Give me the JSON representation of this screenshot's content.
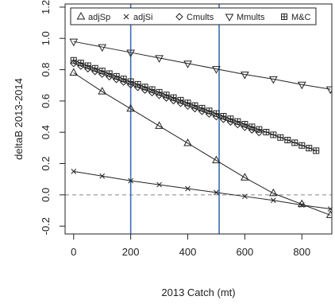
{
  "chart_data": {
    "type": "line",
    "title": "",
    "xlabel": "2013 Catch (mt)",
    "ylabel": "deltaB 2013-2014",
    "xlim": [
      -30,
      905
    ],
    "ylim": [
      -0.25,
      1.22
    ],
    "xticks": [
      0,
      200,
      400,
      600,
      800
    ],
    "yticks": [
      -0.2,
      0.0,
      0.2,
      0.4,
      0.6,
      0.8,
      1.0,
      1.2
    ],
    "ytick_labels": [
      "-0.2",
      "0.0",
      "0.2",
      "0.4",
      "0.6",
      "0.8",
      "1.0",
      "1.2"
    ],
    "grid": false,
    "legend_position": "top",
    "reference_lines": {
      "horizontal_dashed": [
        0.0
      ],
      "vertical": [
        200,
        510
      ],
      "vertical_color": "#3a6fb5"
    },
    "series": [
      {
        "name": "adjSp",
        "marker": "triangle-up",
        "x": [
          0,
          100,
          200,
          300,
          400,
          500,
          600,
          700,
          800,
          900
        ],
        "y": [
          0.78,
          0.66,
          0.55,
          0.44,
          0.33,
          0.22,
          0.11,
          0.01,
          -0.06,
          -0.13
        ]
      },
      {
        "name": "adjSi",
        "marker": "x",
        "x": [
          0,
          100,
          200,
          300,
          400,
          500,
          600,
          700,
          800,
          900
        ],
        "y": [
          0.15,
          0.12,
          0.09,
          0.065,
          0.04,
          0.015,
          -0.01,
          -0.035,
          -0.065,
          -0.09
        ]
      },
      {
        "name": "Cmults",
        "marker": "diamond",
        "x": [
          0,
          25,
          50,
          75,
          100,
          125,
          150,
          175,
          200,
          225,
          250,
          275,
          300,
          325,
          350,
          375,
          400,
          425,
          450,
          475,
          500,
          525,
          550,
          575,
          600,
          625,
          650
        ],
        "y": [
          0.84,
          0.823,
          0.806,
          0.789,
          0.772,
          0.755,
          0.738,
          0.721,
          0.704,
          0.687,
          0.67,
          0.653,
          0.636,
          0.619,
          0.602,
          0.585,
          0.568,
          0.551,
          0.534,
          0.517,
          0.5,
          0.483,
          0.466,
          0.449,
          0.432,
          0.415,
          0.398
        ]
      },
      {
        "name": "Mmults",
        "marker": "triangle-down",
        "x": [
          0,
          100,
          200,
          300,
          400,
          500,
          600,
          700,
          800,
          900
        ],
        "y": [
          0.98,
          0.945,
          0.91,
          0.875,
          0.84,
          0.805,
          0.77,
          0.74,
          0.705,
          0.675
        ]
      },
      {
        "name": "M&C",
        "marker": "square-plus",
        "x": [
          0,
          25,
          50,
          75,
          100,
          125,
          150,
          175,
          200,
          225,
          250,
          275,
          300,
          325,
          350,
          375,
          400,
          425,
          450,
          475,
          500,
          525,
          550,
          575,
          600,
          625,
          650,
          675,
          700,
          725,
          750,
          775,
          800,
          825,
          850
        ],
        "y": [
          0.86,
          0.843,
          0.826,
          0.809,
          0.792,
          0.775,
          0.758,
          0.741,
          0.724,
          0.707,
          0.69,
          0.673,
          0.656,
          0.639,
          0.622,
          0.605,
          0.588,
          0.571,
          0.554,
          0.537,
          0.52,
          0.503,
          0.486,
          0.469,
          0.452,
          0.435,
          0.418,
          0.401,
          0.384,
          0.367,
          0.35,
          0.333,
          0.316,
          0.299,
          0.282
        ]
      }
    ]
  }
}
